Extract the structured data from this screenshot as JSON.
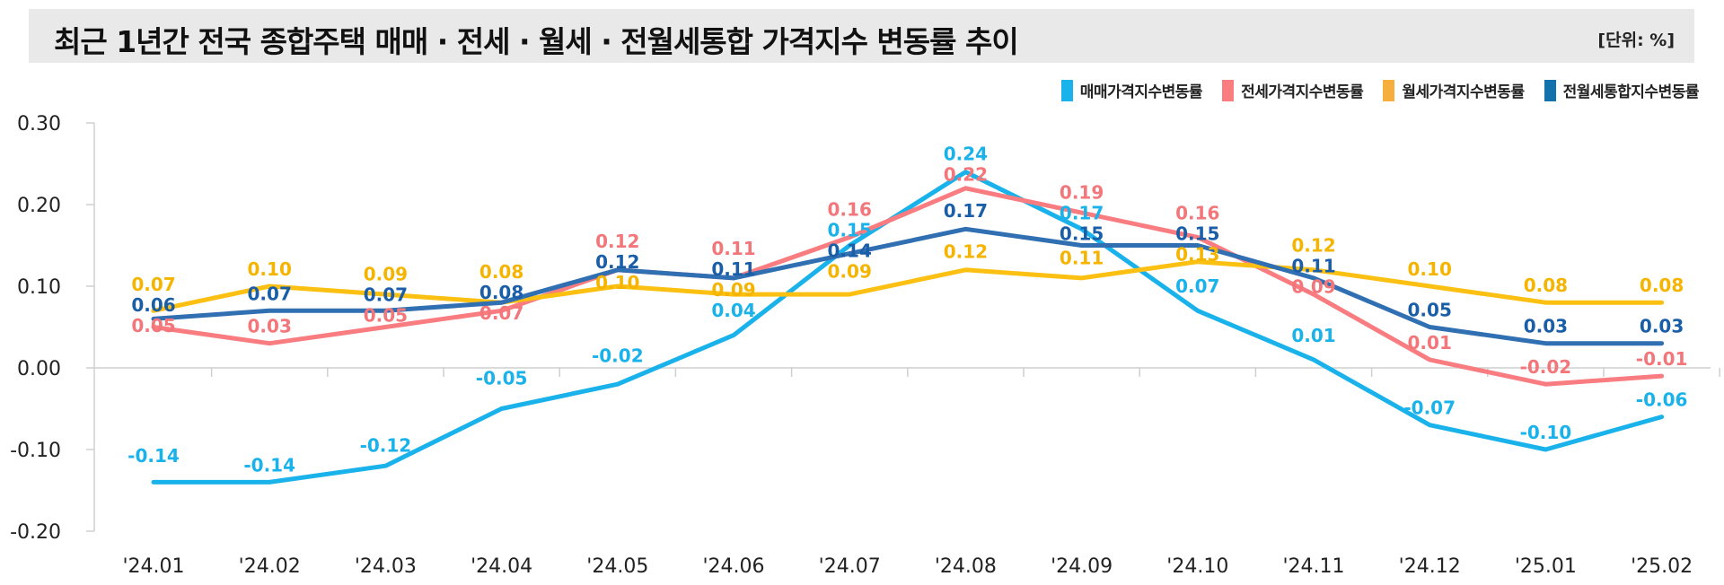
{
  "header": {
    "title": "최근 1년간 전국 종합주택 매매 · 전세 · 월세 · 전월세통합 가격지수 변동률 추이",
    "unit": "[단위: %]"
  },
  "chart_data": {
    "type": "line",
    "title": "최근 1년간 전국 종합주택 매매 · 전세 · 월세 · 전월세통합 가격지수 변동률 추이",
    "unit": "[단위: %]",
    "categories": [
      "'24.01",
      "'24.02",
      "'24.03",
      "'24.04",
      "'24.05",
      "'24.06",
      "'24.07",
      "'24.08",
      "'24.09",
      "'24.10",
      "'24.11",
      "'24.12",
      "'25.01",
      "'25.02"
    ],
    "ylim": [
      -0.2,
      0.3
    ],
    "yticks": [
      "0.30",
      "0.20",
      "0.10",
      "0.00",
      "-0.10",
      "-0.20"
    ],
    "ytick_values": [
      0.3,
      0.2,
      0.1,
      0.0,
      -0.1,
      -0.2
    ],
    "grid": false,
    "legend_position": "top-right",
    "series": [
      {
        "name": "매매가격지수변동률",
        "color": "#1AB2EA",
        "label_color": "#1AB2EA",
        "legend_color": "#1AB2EA",
        "values": [
          -0.14,
          -0.14,
          -0.12,
          -0.05,
          -0.02,
          0.04,
          0.15,
          0.24,
          0.17,
          0.07,
          0.01,
          -0.07,
          -0.1,
          -0.06
        ]
      },
      {
        "name": "전세가격지수변동률",
        "color": "#F87C80",
        "label_color": "#F2767A",
        "legend_color": "#F87C80",
        "values": [
          0.05,
          0.03,
          0.05,
          0.07,
          0.12,
          0.11,
          0.16,
          0.22,
          0.19,
          0.16,
          0.09,
          0.01,
          -0.02,
          -0.01
        ]
      },
      {
        "name": "월세가격지수변동률",
        "color": "#FCC012",
        "label_color": "#F5B400",
        "legend_color": "#F6AE3C",
        "values": [
          0.07,
          0.1,
          0.09,
          0.08,
          0.1,
          0.09,
          0.09,
          0.12,
          0.11,
          0.13,
          0.12,
          0.1,
          0.08,
          0.08
        ]
      },
      {
        "name": "전월세통합지수변동률",
        "color": "#2F6FB2",
        "label_color": "#1A5EA8",
        "legend_color": "#1372AB",
        "values": [
          0.06,
          0.07,
          0.07,
          0.08,
          0.12,
          0.11,
          0.14,
          0.17,
          0.15,
          0.15,
          0.11,
          0.05,
          0.03,
          0.03
        ]
      }
    ]
  }
}
